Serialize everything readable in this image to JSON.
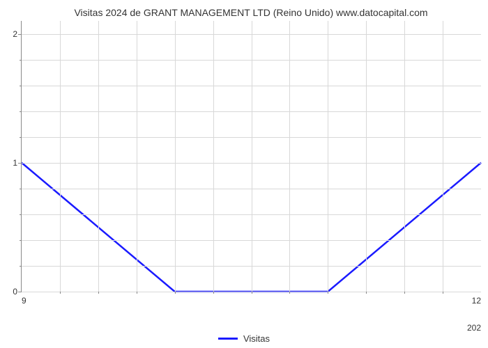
{
  "chart": {
    "type": "line",
    "title": "Visitas 2024 de GRANT MANAGEMENT LTD (Reino Unido) www.datocapital.com",
    "title_fontsize": 14,
    "title_color": "#333333",
    "background_color": "#ffffff",
    "grid_color": "#d8d8d8",
    "axis_color": "#888888",
    "y": {
      "min": 0,
      "max": 2.1,
      "major_ticks": [
        0,
        1,
        2
      ],
      "minor_ticks": [
        0.2,
        0.4,
        0.6,
        0.8,
        1.2,
        1.4,
        1.6,
        1.8,
        2.0
      ],
      "label_fontsize": 12,
      "label_color": "#333333"
    },
    "x": {
      "min": 9,
      "max": 12,
      "minor_ticks": [
        9.25,
        9.5,
        9.75,
        10,
        10.25,
        10.5,
        10.75,
        11,
        11.25,
        11.5,
        11.75
      ],
      "left_label": "9",
      "right_label": "12",
      "secondary_right_label": "202",
      "label_fontsize": 12,
      "label_color": "#333333"
    },
    "series": {
      "name": "Visitas",
      "color": "#1a1aff",
      "line_width": 2.5,
      "points": [
        {
          "x": 9.0,
          "y": 1.0
        },
        {
          "x": 10.0,
          "y": 0.0
        },
        {
          "x": 11.0,
          "y": 0.0
        },
        {
          "x": 12.0,
          "y": 1.0
        }
      ]
    },
    "legend": {
      "label": "Visitas",
      "swatch_color": "#1a1aff",
      "fontsize": 13,
      "text_color": "#333333"
    }
  }
}
